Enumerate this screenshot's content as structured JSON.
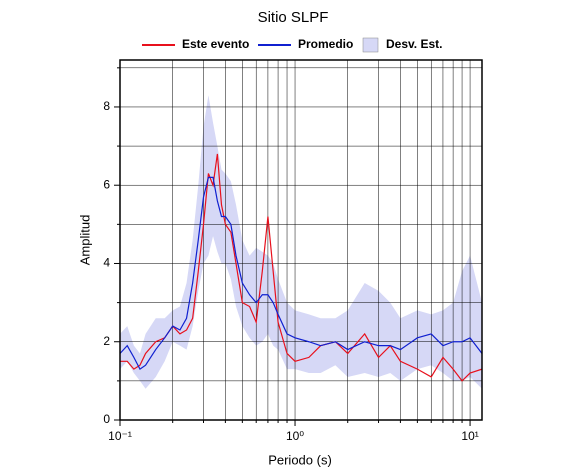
{
  "chart_data": {
    "type": "line",
    "title": "Sitio SLPF",
    "xlabel": "Periodo (s)",
    "ylabel": "Amplitud",
    "log_x": true,
    "grid": true,
    "legend": "top",
    "xlim": [
      0.1,
      11.7
    ],
    "ylim": [
      0,
      9.2
    ],
    "xticks": [
      {
        "value": 0.1,
        "label": "10⁻¹"
      },
      {
        "value": 1,
        "label": "10⁰"
      },
      {
        "value": 10,
        "label": "10¹"
      }
    ],
    "xminor_ticks": [
      0.2,
      0.3,
      0.4,
      0.5,
      0.6,
      0.7,
      0.8,
      0.9,
      2,
      3,
      4,
      5,
      6,
      7,
      8,
      9
    ],
    "yticks": [
      0,
      2,
      4,
      6,
      8
    ],
    "yminor_ticks": [
      1,
      3,
      5,
      7,
      9
    ],
    "x": [
      0.1,
      0.11,
      0.12,
      0.13,
      0.14,
      0.16,
      0.18,
      0.2,
      0.22,
      0.24,
      0.26,
      0.28,
      0.3,
      0.32,
      0.34,
      0.36,
      0.38,
      0.4,
      0.43,
      0.46,
      0.5,
      0.55,
      0.6,
      0.65,
      0.7,
      0.75,
      0.8,
      0.9,
      1.0,
      1.2,
      1.4,
      1.7,
      2,
      2.5,
      3,
      3.5,
      4,
      5,
      6,
      7,
      8,
      9,
      10,
      11.7
    ],
    "series": [
      {
        "name": "Este evento",
        "color": "#e8101c",
        "values": [
          1.5,
          1.5,
          1.3,
          1.4,
          1.7,
          2.0,
          2.1,
          2.4,
          2.2,
          2.3,
          2.6,
          3.8,
          5.0,
          6.3,
          6.0,
          6.8,
          5.5,
          5.0,
          4.8,
          4.0,
          3.0,
          2.9,
          2.5,
          3.8,
          5.2,
          3.8,
          2.5,
          1.7,
          1.5,
          1.6,
          1.9,
          2.0,
          1.7,
          2.2,
          1.6,
          1.9,
          1.5,
          1.3,
          1.1,
          1.6,
          1.3,
          1.0,
          1.2,
          1.3
        ]
      },
      {
        "name": "Promedio",
        "color": "#1020d0",
        "values": [
          1.7,
          1.9,
          1.6,
          1.3,
          1.4,
          1.8,
          2.1,
          2.4,
          2.3,
          2.6,
          3.5,
          4.6,
          5.7,
          6.2,
          6.2,
          5.6,
          5.2,
          5.2,
          5.0,
          4.2,
          3.5,
          3.2,
          3.0,
          3.2,
          3.2,
          3.0,
          2.7,
          2.2,
          2.1,
          2.0,
          1.9,
          2.0,
          1.8,
          2.0,
          1.9,
          1.9,
          1.8,
          2.1,
          2.2,
          1.9,
          2.0,
          2.0,
          2.1,
          1.7
        ]
      },
      {
        "name": "Desv. Est.",
        "color": "#d6d8f6",
        "upper": [
          2.2,
          2.4,
          1.9,
          1.7,
          2.2,
          2.6,
          2.6,
          2.8,
          2.9,
          3.5,
          4.6,
          6.0,
          7.5,
          8.3,
          7.6,
          7.0,
          6.4,
          6.3,
          6.1,
          5.5,
          4.6,
          4.2,
          4.4,
          4.3,
          4.2,
          4.0,
          3.6,
          3.0,
          2.8,
          2.7,
          2.6,
          2.6,
          2.8,
          3.5,
          3.3,
          3.0,
          2.6,
          2.8,
          2.7,
          2.8,
          3.0,
          3.8,
          4.2,
          3.0
        ],
        "lower": [
          1.3,
          1.5,
          1.2,
          1.0,
          0.8,
          1.1,
          1.5,
          2.0,
          1.9,
          1.8,
          2.4,
          3.3,
          4.0,
          4.2,
          4.7,
          4.3,
          4.0,
          4.0,
          3.6,
          2.9,
          2.4,
          2.1,
          1.9,
          2.0,
          2.2,
          1.9,
          1.8,
          1.3,
          1.3,
          1.2,
          1.2,
          1.4,
          1.1,
          1.2,
          1.1,
          1.2,
          1.0,
          1.3,
          1.4,
          1.2,
          1.0,
          1.0,
          1.1,
          0.8
        ]
      }
    ]
  }
}
